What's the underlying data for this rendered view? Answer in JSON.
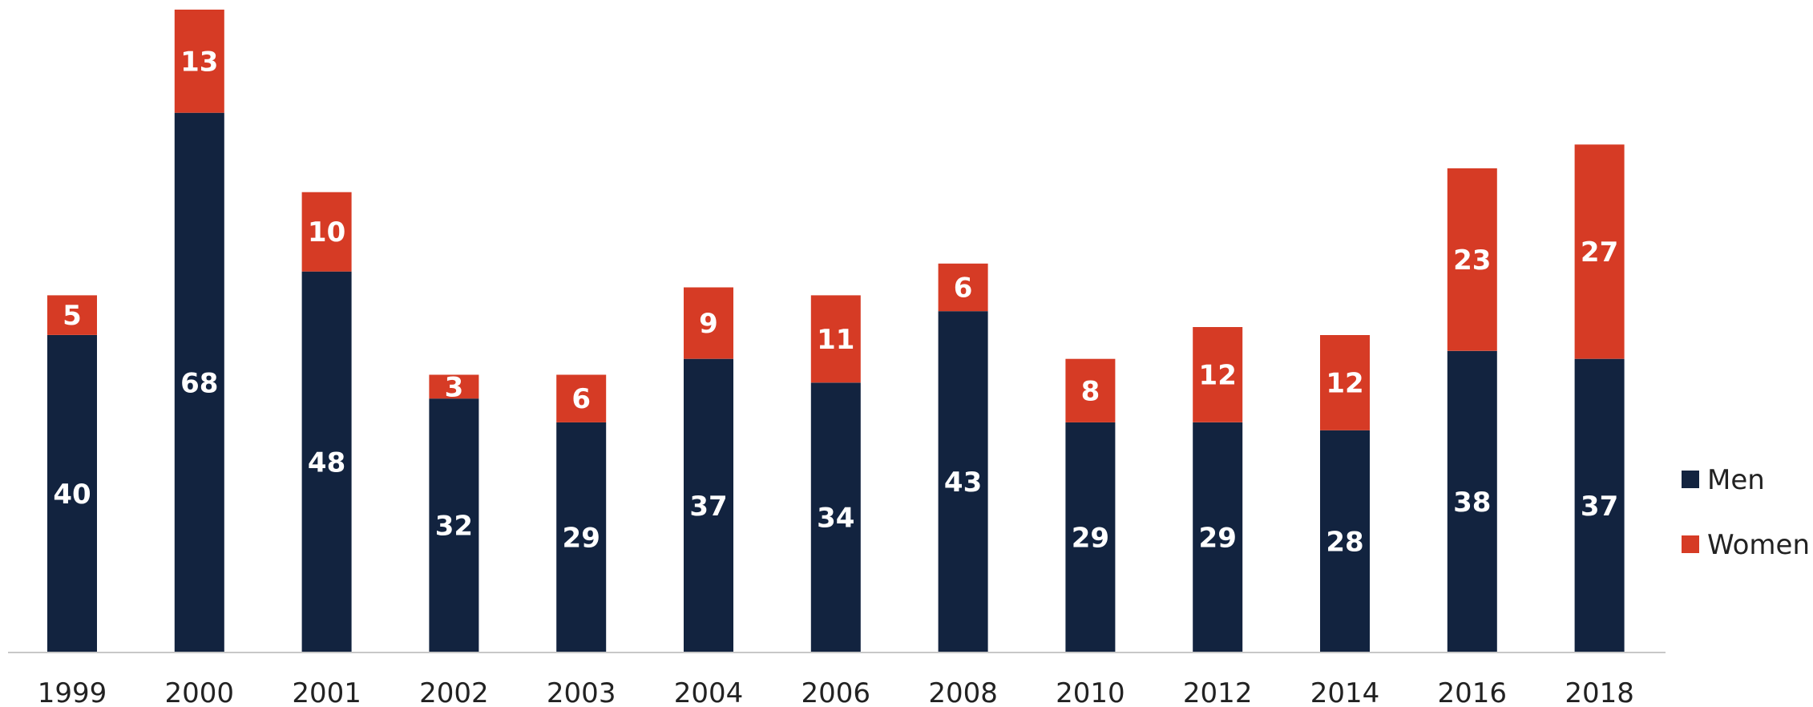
{
  "chart_data": {
    "type": "bar",
    "stacked": true,
    "categories": [
      "1999",
      "2000",
      "2001",
      "2002",
      "2003",
      "2004",
      "2006",
      "2008",
      "2010",
      "2012",
      "2014",
      "2016",
      "2018"
    ],
    "series": [
      {
        "name": "Men",
        "color": "#12233f",
        "values": [
          40,
          68,
          48,
          32,
          29,
          37,
          34,
          43,
          29,
          29,
          28,
          38,
          37
        ]
      },
      {
        "name": "Women",
        "color": "#d63b25",
        "values": [
          5,
          13,
          10,
          3,
          6,
          9,
          11,
          6,
          8,
          12,
          12,
          23,
          27
        ]
      }
    ],
    "ylim": [
      0,
      81
    ],
    "grid": false,
    "legend": "right",
    "title": "",
    "xlabel": "",
    "ylabel": ""
  }
}
